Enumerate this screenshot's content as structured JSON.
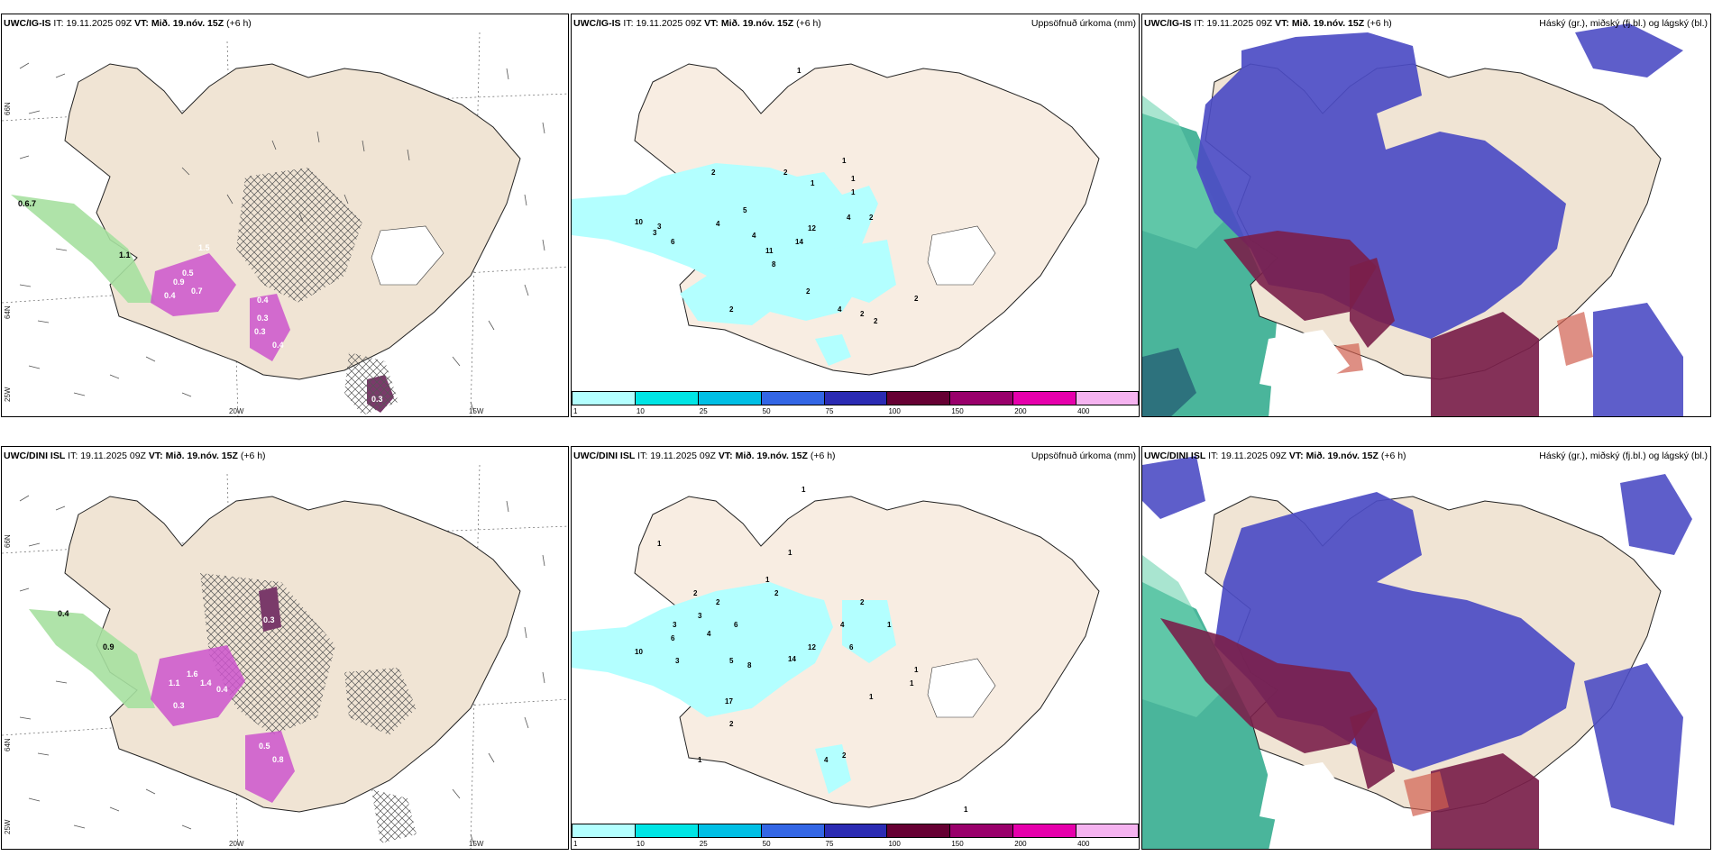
{
  "top": {
    "model": "UWC/IG-IS",
    "it_label": "IT:",
    "it_value": "19.11.2025 09Z",
    "vt_label": "VT:",
    "vt_value": "Mið. 19.nóv. 15Z",
    "step": "(+6 h)"
  },
  "bottom": {
    "model": "UWC/DINI ISL",
    "it_label": "IT:",
    "it_value": "19.11.2025 09Z",
    "vt_label": "VT:",
    "vt_value": "Mið. 19.nóv. 15Z",
    "step": "(+6 h)"
  },
  "precip_title": "Uppsöfnuð úrkoma (mm)",
  "cloud_title": "Háský (gr.), miðský (fj.bl.) og lágský (bl.)",
  "axis": {
    "lat66": "66N",
    "lat64": "64N",
    "lon25": "25W",
    "lon20": "20W",
    "lon15": "15W"
  },
  "legend": {
    "labels": [
      "1",
      "10",
      "25",
      "50",
      "75",
      "100",
      "150",
      "200",
      "400"
    ],
    "colors": [
      "#b3ffff",
      "#00e5e5",
      "#00bfe5",
      "#3366e5",
      "#2b2bb3",
      "#660033",
      "#99006b",
      "#e600ac",
      "#f5b3f0"
    ]
  },
  "top_precip_labels": [
    "1",
    "1",
    "1",
    "2",
    "2",
    "1",
    "1",
    "5",
    "4",
    "4",
    "6",
    "3",
    "10",
    "3",
    "11",
    "12",
    "14",
    "8",
    "2",
    "4",
    "4",
    "2",
    "2",
    "2",
    "2",
    "2"
  ],
  "bottom_precip_labels": [
    "1",
    "1",
    "1",
    "2",
    "2",
    "1",
    "2",
    "3",
    "6",
    "4",
    "3",
    "6",
    "10",
    "3",
    "5",
    "8",
    "12",
    "14",
    "4",
    "6",
    "1",
    "2",
    "1",
    "1",
    "1",
    "17",
    "2",
    "4",
    "2",
    "1",
    "1"
  ],
  "top_snow_labels": [
    "0.6.7",
    "0.4",
    "0.3",
    "1.5",
    "0.9",
    "0.7",
    "0.4",
    "1.1",
    "0.5",
    "0.3",
    "0.4",
    "0.3"
  ],
  "bottom_snow_labels": [
    "0.4",
    "0.9",
    "1.1",
    "1.6",
    "1.4",
    "0.4",
    "0.3",
    "0.5",
    "0.3",
    "0.8"
  ]
}
